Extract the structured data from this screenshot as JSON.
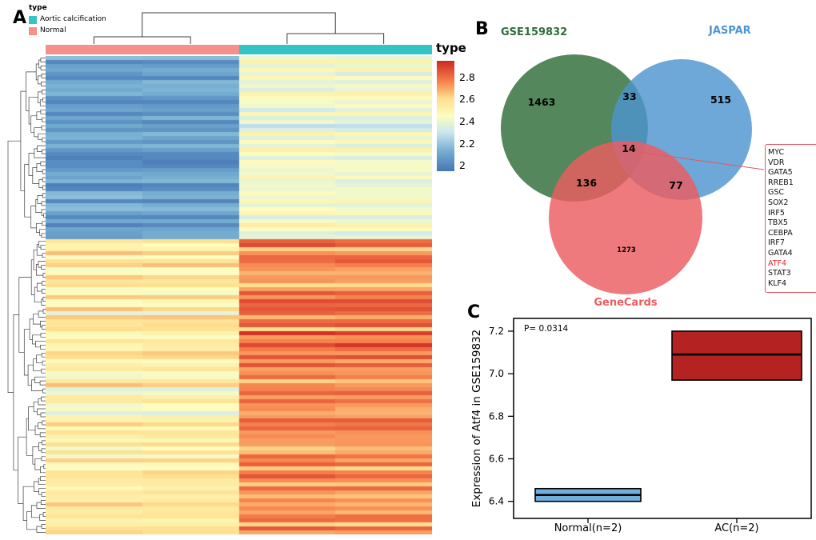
{
  "chart_data": [
    {
      "type": "heatmap",
      "panel": "A",
      "legend_title": "type",
      "legend_entries": [
        {
          "label": "Aortic calcification",
          "color": "#36C3C6"
        },
        {
          "label": "Normal",
          "color": "#F4918B"
        }
      ],
      "annotation_bar_label": "type",
      "column_groups": [
        "Normal",
        "Normal",
        "Aortic calcification",
        "Aortic calcification"
      ],
      "n_rows": 120,
      "row_blocks": [
        {
          "name": "low-in-normal-cluster",
          "fraction": 0.38,
          "normal_mean": 2.08,
          "ac_mean": 2.44,
          "noise": 0.09
        },
        {
          "name": "high-expression-cluster",
          "fraction": 0.62,
          "normal_mean": 2.54,
          "ac_mean": 2.74,
          "noise": 0.12
        }
      ],
      "colorscale": {
        "domain": [
          1.95,
          2.95
        ],
        "ticks": [
          2.8,
          2.6,
          2.4,
          2.2,
          2
        ],
        "palette_stops": [
          {
            "t": 0,
            "color": "#4575b4"
          },
          {
            "t": 0.18,
            "color": "#74add1"
          },
          {
            "t": 0.36,
            "color": "#cbe8f0"
          },
          {
            "t": 0.5,
            "color": "#fdfdc0"
          },
          {
            "t": 0.66,
            "color": "#fee090"
          },
          {
            "t": 0.82,
            "color": "#f67f4b"
          },
          {
            "t": 1,
            "color": "#cf2b25"
          }
        ]
      }
    },
    {
      "type": "venn",
      "panel": "B",
      "sets": [
        {
          "name": "GSE159832",
          "color": "#2F6D38",
          "unique": 1463
        },
        {
          "name": "JASPAR",
          "color": "#4D95D0",
          "unique": 515
        },
        {
          "name": "GeneCards",
          "color": "#EC5D60",
          "unique": 1273
        }
      ],
      "overlaps": {
        "gse159832_jaspar": 33,
        "gse159832_genecards": 136,
        "jaspar_genecards": 77,
        "center": 14
      },
      "center_genes": [
        "MYC",
        "VDR",
        "GATA5",
        "RREB1",
        "GSC",
        "SOX2",
        "IRF5",
        "TBX5",
        "CEBPA",
        "IRF7",
        "GATA4",
        "ATF4",
        "STAT3",
        "KLF4"
      ],
      "highlighted_gene": "ATF4"
    },
    {
      "type": "box",
      "panel": "C",
      "ylabel": "Expression of Atf4 in GSE159832",
      "p_value_text": "P= 0.0314",
      "p_value": 0.0314,
      "ylim": [
        6.32,
        7.26
      ],
      "yticks": [
        6.4,
        6.6,
        6.8,
        7.0,
        7.2
      ],
      "categories": [
        "Normal(n=2)",
        "AC(n=2)"
      ],
      "boxes": [
        {
          "label": "Normal(n=2)",
          "color": "#72AEDC",
          "q1": 6.4,
          "median": 6.43,
          "q3": 6.46
        },
        {
          "label": "AC(n=2)",
          "color": "#B42322",
          "q1": 6.97,
          "median": 7.09,
          "q3": 7.2
        }
      ]
    }
  ]
}
